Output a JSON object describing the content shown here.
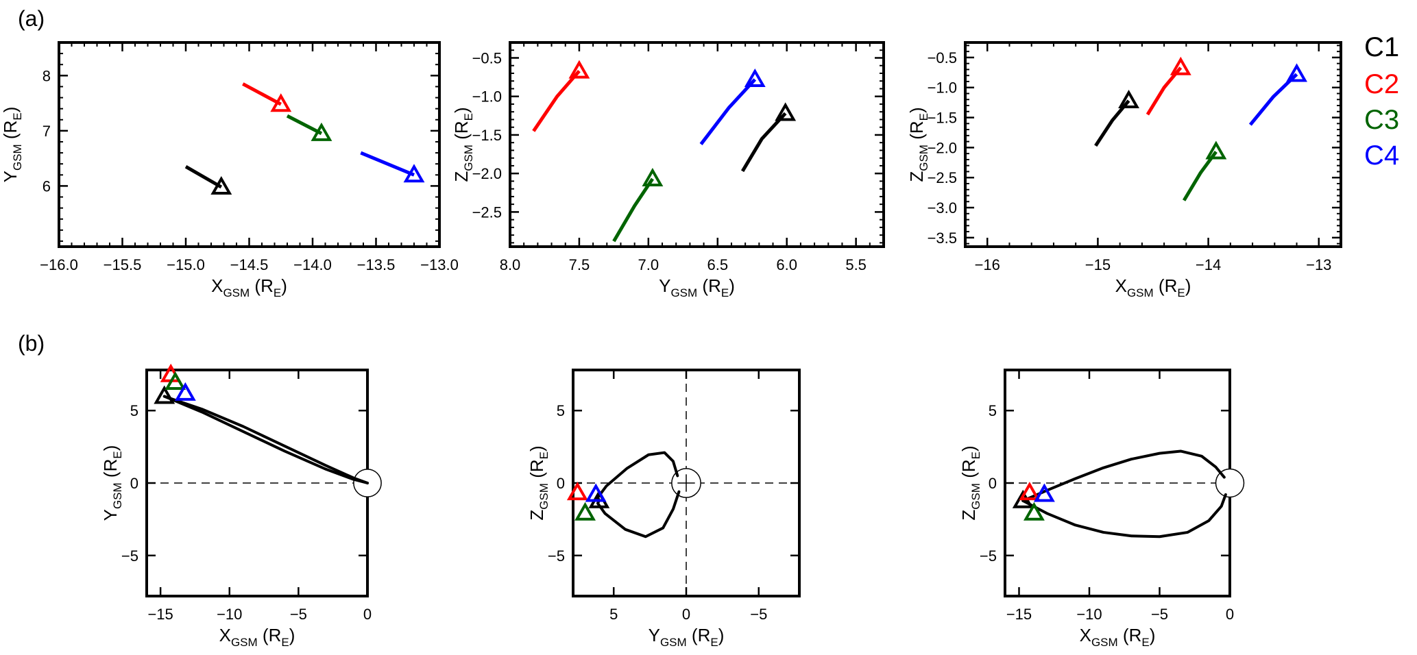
{
  "panel_labels": [
    "(a)",
    "(b)"
  ],
  "legend": [
    {
      "label": "C1",
      "color": "#000000"
    },
    {
      "label": "C2",
      "color": "#ff0000"
    },
    {
      "label": "C3",
      "color": "#006400"
    },
    {
      "label": "C4",
      "color": "#0000ff"
    }
  ],
  "axis_symbols": {
    "X": "X",
    "Y": "Y",
    "Z": "Z",
    "sub": "GSM",
    "unit": "R",
    "unit_sub": "E"
  },
  "chart_data": [
    {
      "id": "a1",
      "type": "line",
      "row": "a",
      "xaxis": "X",
      "yaxis": "Y",
      "xlim": [
        -16.0,
        -13.0
      ],
      "ylim": [
        4.9,
        8.6
      ],
      "xticks": [
        -16.0,
        -15.5,
        -15.0,
        -14.5,
        -14.0,
        -13.5,
        -13.0
      ],
      "xtick_labels": [
        "−16.0",
        "−15.5",
        "−15.0",
        "−14.5",
        "−14.0",
        "−13.5",
        "−13.0"
      ],
      "yticks": [
        6,
        7,
        8
      ],
      "ytick_labels": [
        "6",
        "7",
        "8"
      ],
      "series": [
        {
          "name": "C1",
          "x": [
            -15.0,
            -14.72
          ],
          "y": [
            6.35,
            5.98
          ],
          "marker": [
            -14.72,
            5.98
          ]
        },
        {
          "name": "C2",
          "x": [
            -14.55,
            -14.25
          ],
          "y": [
            7.85,
            7.48
          ],
          "marker": [
            -14.25,
            7.48
          ]
        },
        {
          "name": "C3",
          "x": [
            -14.2,
            -13.93
          ],
          "y": [
            7.27,
            6.95
          ],
          "marker": [
            -13.93,
            6.95
          ]
        },
        {
          "name": "C4",
          "x": [
            -13.62,
            -13.2
          ],
          "y": [
            6.6,
            6.2
          ],
          "marker": [
            -13.2,
            6.2
          ]
        }
      ]
    },
    {
      "id": "a2",
      "type": "line",
      "row": "a",
      "xaxis": "Y",
      "yaxis": "Z",
      "xlim": [
        8.0,
        5.3
      ],
      "ylim": [
        -2.95,
        -0.3
      ],
      "xticks": [
        8.0,
        7.5,
        7.0,
        6.5,
        6.0,
        5.5
      ],
      "xtick_labels": [
        "8.0",
        "7.5",
        "7.0",
        "6.5",
        "6.0",
        "5.5"
      ],
      "yticks": [
        -2.5,
        -2.0,
        -1.5,
        -1.0,
        -0.5
      ],
      "ytick_labels": [
        "−2.5",
        "−2.0",
        "−1.5",
        "−1.0",
        "−0.5"
      ],
      "series": [
        {
          "name": "C1",
          "x": [
            6.32,
            6.18,
            6.01
          ],
          "y": [
            -1.97,
            -1.55,
            -1.22
          ],
          "marker": [
            6.01,
            -1.22
          ]
        },
        {
          "name": "C2",
          "x": [
            7.83,
            7.66,
            7.5
          ],
          "y": [
            -1.45,
            -1.0,
            -0.67
          ],
          "marker": [
            7.5,
            -0.67
          ]
        },
        {
          "name": "C3",
          "x": [
            7.25,
            7.1,
            6.97
          ],
          "y": [
            -2.88,
            -2.42,
            -2.07
          ],
          "marker": [
            6.97,
            -2.07
          ]
        },
        {
          "name": "C4",
          "x": [
            6.62,
            6.42,
            6.23
          ],
          "y": [
            -1.62,
            -1.15,
            -0.78
          ],
          "marker": [
            6.23,
            -0.78
          ]
        }
      ]
    },
    {
      "id": "a3",
      "type": "line",
      "row": "a",
      "xaxis": "X",
      "yaxis": "Z",
      "xlim": [
        -16.2,
        -12.8
      ],
      "ylim": [
        -3.65,
        -0.25
      ],
      "xticks": [
        -16,
        -15,
        -14,
        -13
      ],
      "xtick_labels": [
        "−16",
        "−15",
        "−14",
        "−13"
      ],
      "yticks": [
        -3.5,
        -3.0,
        -2.5,
        -2.0,
        -1.5,
        -1.0,
        -0.5
      ],
      "ytick_labels": [
        "−3.5",
        "−3.0",
        "−2.5",
        "−2.0",
        "−1.5",
        "−1.0",
        "−0.5"
      ],
      "series": [
        {
          "name": "C1",
          "x": [
            -15.02,
            -14.87,
            -14.72
          ],
          "y": [
            -1.97,
            -1.55,
            -1.22
          ],
          "marker": [
            -14.72,
            -1.22
          ]
        },
        {
          "name": "C2",
          "x": [
            -14.55,
            -14.4,
            -14.25
          ],
          "y": [
            -1.45,
            -1.0,
            -0.67
          ],
          "marker": [
            -14.25,
            -0.67
          ]
        },
        {
          "name": "C3",
          "x": [
            -14.22,
            -14.07,
            -13.93
          ],
          "y": [
            -2.88,
            -2.42,
            -2.07
          ],
          "marker": [
            -13.93,
            -2.07
          ]
        },
        {
          "name": "C4",
          "x": [
            -13.62,
            -13.41,
            -13.2
          ],
          "y": [
            -1.62,
            -1.15,
            -0.78
          ],
          "marker": [
            -13.2,
            -0.78
          ]
        }
      ]
    },
    {
      "id": "b1",
      "type": "line",
      "row": "b",
      "xaxis": "X",
      "yaxis": "Y",
      "xlim": [
        -16,
        0
      ],
      "ylim": [
        -7.8,
        7.8
      ],
      "xticks": [
        -15,
        -10,
        -5,
        0
      ],
      "xtick_labels": [
        "−15",
        "−10",
        "−5",
        "0"
      ],
      "yticks": [
        -5,
        0,
        5
      ],
      "ytick_labels": [
        "−5",
        "0",
        "5"
      ],
      "earth_radius": 1,
      "field_lines": [
        {
          "x": [
            -14.72,
            -12,
            -9,
            -6,
            -3,
            -1,
            0
          ],
          "y": [
            5.98,
            5.1,
            3.9,
            2.55,
            1.2,
            0.35,
            0
          ]
        },
        {
          "x": [
            -14.72,
            -12,
            -9,
            -6,
            -3,
            -1,
            0
          ],
          "y": [
            5.98,
            4.9,
            3.55,
            2.2,
            0.95,
            0.25,
            0
          ]
        }
      ],
      "markers": [
        {
          "name": "C1",
          "x": -14.72,
          "y": 5.98
        },
        {
          "name": "C2",
          "x": -14.25,
          "y": 7.48
        },
        {
          "name": "C3",
          "x": -13.93,
          "y": 6.95
        },
        {
          "name": "C4",
          "x": -13.2,
          "y": 6.2
        }
      ]
    },
    {
      "id": "b2",
      "type": "line",
      "row": "b",
      "xaxis": "Y",
      "yaxis": "Z",
      "xlim": [
        7.8,
        -7.8
      ],
      "ylim": [
        -7.8,
        7.8
      ],
      "xticks": [
        5,
        0,
        -5
      ],
      "xtick_labels": [
        "5",
        "0",
        "−5"
      ],
      "yticks": [
        -5,
        0,
        5
      ],
      "ytick_labels": [
        "−5",
        "0",
        "5"
      ],
      "earth_radius": 1,
      "field_lines": [
        {
          "x": [
            0.6,
            0.9,
            1.5,
            2.6,
            4.1,
            5.5,
            6.1,
            6.0
          ],
          "y": [
            0.5,
            1.5,
            2.1,
            1.95,
            1.0,
            -0.2,
            -1.0,
            -1.2
          ]
        },
        {
          "x": [
            0.5,
            0.9,
            1.6,
            2.8,
            4.2,
            5.6,
            6.1,
            6.0
          ],
          "y": [
            -0.6,
            -1.8,
            -3.1,
            -3.7,
            -3.2,
            -2.1,
            -1.4,
            -1.2
          ]
        }
      ],
      "markers": [
        {
          "name": "C1",
          "x": 6.01,
          "y": -1.22
        },
        {
          "name": "C2",
          "x": 7.5,
          "y": -0.67
        },
        {
          "name": "C3",
          "x": 6.97,
          "y": -2.07
        },
        {
          "name": "C4",
          "x": 6.23,
          "y": -0.78
        }
      ]
    },
    {
      "id": "b3",
      "type": "line",
      "row": "b",
      "xaxis": "X",
      "yaxis": "Z",
      "xlim": [
        -16,
        0
      ],
      "ylim": [
        -7.8,
        7.8
      ],
      "xticks": [
        -15,
        -10,
        -5,
        0
      ],
      "xtick_labels": [
        "−15",
        "−10",
        "−5",
        "0"
      ],
      "yticks": [
        -5,
        0,
        5
      ],
      "ytick_labels": [
        "−5",
        "0",
        "5"
      ],
      "earth_radius": 1,
      "field_lines": [
        {
          "x": [
            -14.72,
            -13,
            -11,
            -9,
            -7,
            -5,
            -3.5,
            -2,
            -1,
            -0.4
          ],
          "y": [
            -1.22,
            -0.5,
            0.3,
            1.05,
            1.65,
            2.05,
            2.2,
            1.85,
            1.1,
            0.4
          ]
        },
        {
          "x": [
            -14.72,
            -13,
            -11,
            -9,
            -7,
            -5,
            -3,
            -1.5,
            -0.6,
            -0.3
          ],
          "y": [
            -1.22,
            -2.1,
            -2.9,
            -3.4,
            -3.65,
            -3.7,
            -3.4,
            -2.6,
            -1.6,
            -0.8
          ]
        }
      ],
      "markers": [
        {
          "name": "C1",
          "x": -14.72,
          "y": -1.22
        },
        {
          "name": "C2",
          "x": -14.25,
          "y": -0.67
        },
        {
          "name": "C3",
          "x": -13.93,
          "y": -2.07
        },
        {
          "name": "C4",
          "x": -13.2,
          "y": -0.78
        }
      ]
    }
  ]
}
